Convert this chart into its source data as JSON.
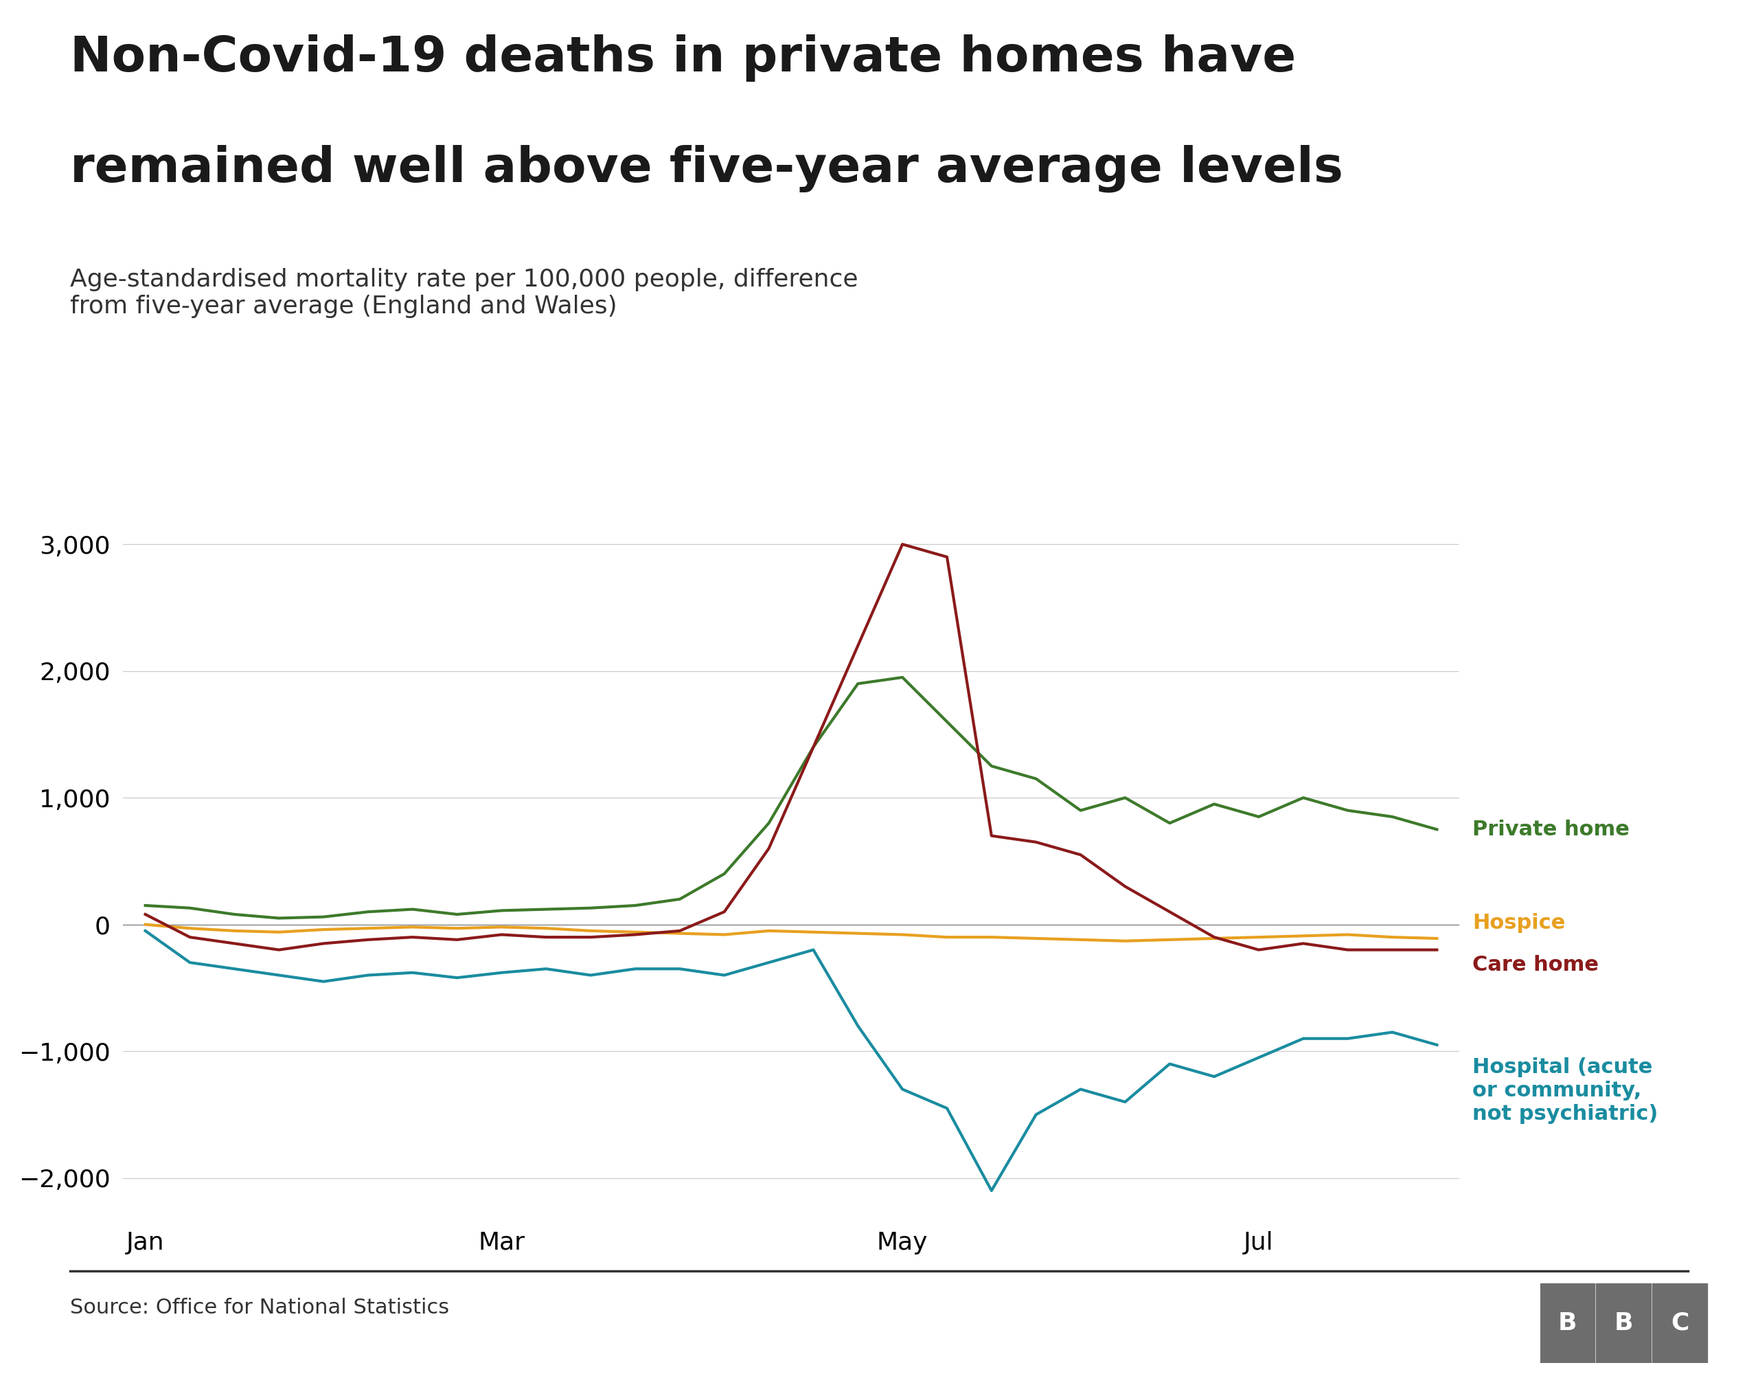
{
  "title_line1": "Non-Covid-19 deaths in private homes have",
  "title_line2": "remained well above five-year average levels",
  "subtitle": "Age-standardised mortality rate per 100,000 people, difference\nfrom five-year average (England and Wales)",
  "source": "Source: Office for National Statistics",
  "x_labels": [
    "Jan",
    "Mar",
    "May",
    "Jul"
  ],
  "private_home": {
    "label": "Private home",
    "color": "#3d7a2b",
    "values": [
      150,
      130,
      80,
      50,
      60,
      100,
      120,
      80,
      110,
      120,
      130,
      150,
      200,
      400,
      800,
      1400,
      1900,
      1950,
      1600,
      1250,
      1150,
      900,
      1000,
      800,
      950,
      850,
      1000,
      900,
      850,
      750
    ]
  },
  "hospice": {
    "label": "Hospice",
    "color": "#e8a020",
    "values": [
      0,
      -30,
      -50,
      -60,
      -40,
      -30,
      -20,
      -30,
      -20,
      -30,
      -50,
      -60,
      -70,
      -80,
      -50,
      -60,
      -70,
      -80,
      -100,
      -100,
      -110,
      -120,
      -130,
      -120,
      -110,
      -100,
      -90,
      -80,
      -100,
      -110
    ]
  },
  "care_home": {
    "label": "Care home",
    "color": "#8b1a1a",
    "values": [
      80,
      -100,
      -150,
      -200,
      -150,
      -120,
      -100,
      -120,
      -80,
      -100,
      -100,
      -80,
      -50,
      100,
      600,
      1400,
      2200,
      3000,
      2900,
      700,
      650,
      550,
      300,
      100,
      -100,
      -200,
      -150,
      -200,
      -200,
      -200
    ]
  },
  "hospital": {
    "label": "Hospital (acute\nor community,\nnot psychiatric)",
    "color": "#1a8ca0",
    "values": [
      -50,
      -300,
      -350,
      -400,
      -450,
      -400,
      -380,
      -420,
      -380,
      -350,
      -400,
      -350,
      -350,
      -400,
      -300,
      -200,
      -800,
      -1300,
      -1450,
      -2100,
      -1500,
      -1300,
      -1400,
      -1100,
      -1200,
      -1050,
      -900,
      -900,
      -850,
      -950
    ]
  },
  "ylim": [
    -2300,
    3500
  ],
  "yticks": [
    -2000,
    -1000,
    0,
    1000,
    2000,
    3000
  ],
  "background_color": "#ffffff",
  "line_width": 3.0
}
